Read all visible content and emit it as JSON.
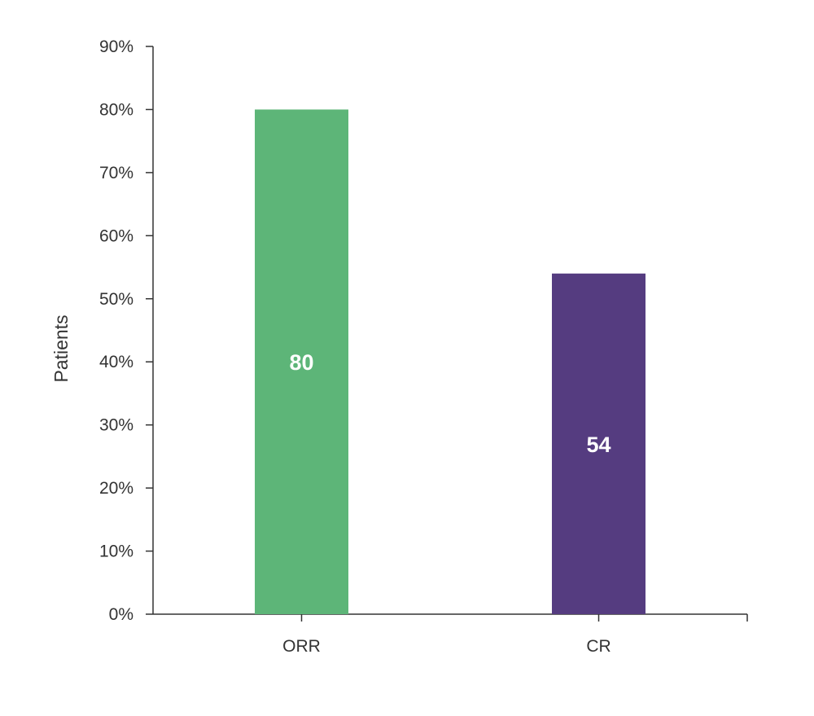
{
  "chart_data": {
    "type": "bar",
    "categories": [
      "ORR",
      "CR"
    ],
    "values": [
      80,
      54
    ],
    "colors": [
      "#5db578",
      "#553c80"
    ],
    "data_labels": [
      "80",
      "54"
    ],
    "ylabel": "Patients",
    "xlabel": "",
    "ylim": [
      0,
      90
    ],
    "yticks": [
      0,
      10,
      20,
      30,
      40,
      50,
      60,
      70,
      80,
      90
    ],
    "ytick_labels": [
      "0%",
      "10%",
      "20%",
      "30%",
      "40%",
      "50%",
      "60%",
      "70%",
      "80%",
      "90%"
    ],
    "grid": false,
    "legend": "none"
  }
}
